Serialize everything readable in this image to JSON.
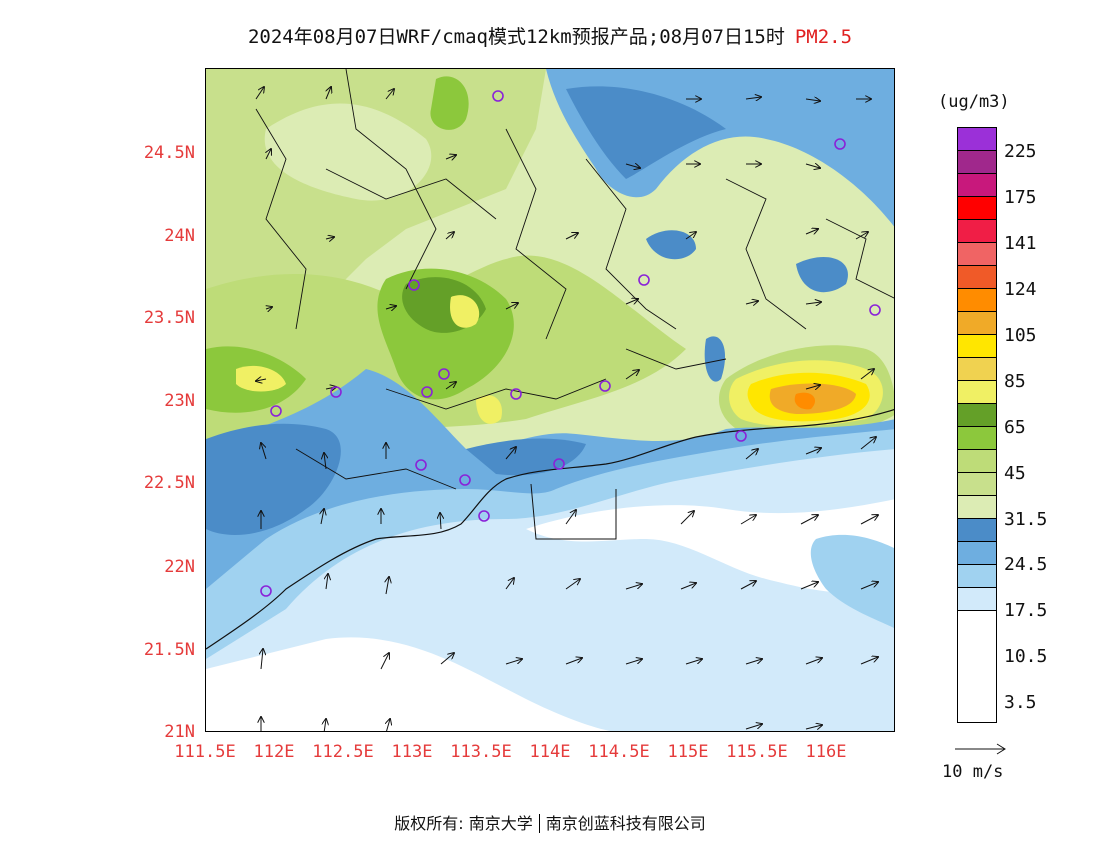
{
  "title": {
    "main": "2024年08月07日WRF/cmaq模式12km预报产品;08月07日15时",
    "species": "PM2.5"
  },
  "axes": {
    "y_labels": [
      "24.5N",
      "24N",
      "23.5N",
      "23N",
      "22.5N",
      "22N",
      "21.5N",
      "21N"
    ],
    "x_labels": [
      "111.5E",
      "112E",
      "112.5E",
      "113E",
      "113.5E",
      "114E",
      "114.5E",
      "115E",
      "115.5E",
      "116E"
    ]
  },
  "colorbar": {
    "unit": "(ug/m3)",
    "labels": [
      "225",
      "175",
      "141",
      "124",
      "105",
      "85",
      "65",
      "45",
      "31.5",
      "24.5",
      "17.5",
      "10.5",
      "3.5"
    ],
    "colors": [
      "#9b30d8",
      "#a0288c",
      "#c8187c",
      "#ff0000",
      "#f01e46",
      "#f06464",
      "#f05a28",
      "#ff8c00",
      "#f0aa28",
      "#ffe600",
      "#f0d250",
      "#f0f064",
      "#64a028",
      "#8cc83c",
      "#bedc78",
      "#c8e08c",
      "#dcecb4",
      "#4b8cc8",
      "#6eaee0",
      "#a0d2f0",
      "#d2eafa",
      "#ffffff"
    ]
  },
  "wind_key": {
    "label": "10 m/s"
  },
  "footer": {
    "left": "版权所有: 南京大学",
    "right": "南京创蓝科技有限公司"
  }
}
